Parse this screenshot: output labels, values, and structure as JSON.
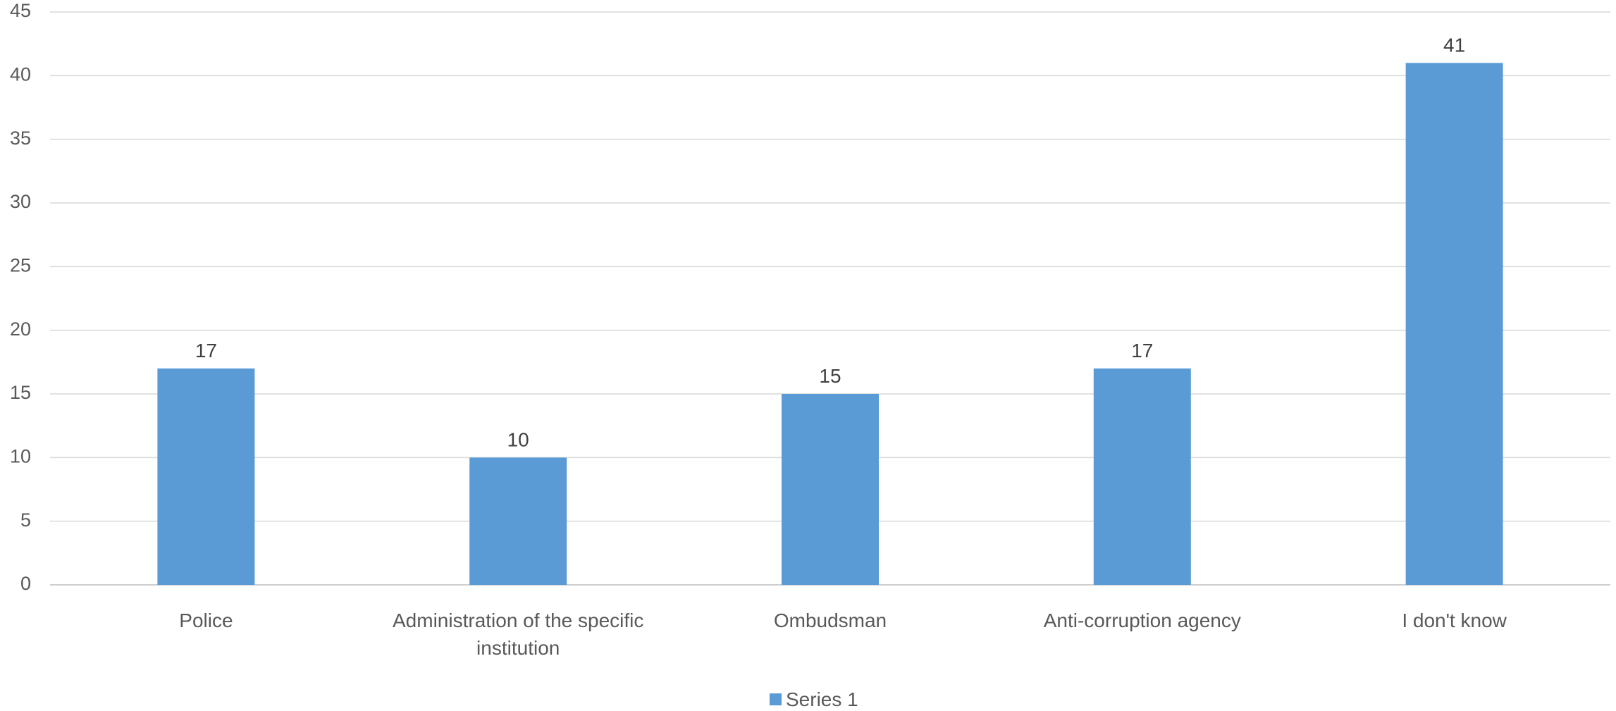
{
  "chart_data": {
    "type": "bar",
    "categories": [
      [
        "Police"
      ],
      [
        "Administration of the specific",
        "institution"
      ],
      [
        "Ombudsman"
      ],
      [
        "Anti-corruption agency"
      ],
      [
        "I don't know"
      ]
    ],
    "series": [
      {
        "name": "Series 1",
        "values": [
          17,
          10,
          15,
          17,
          41
        ],
        "color": "#5b9bd5"
      }
    ],
    "ylim": [
      0,
      45
    ],
    "yticks": [
      0,
      5,
      10,
      15,
      20,
      25,
      30,
      35,
      40,
      45
    ],
    "grid": true,
    "legend": "bottom-center",
    "data_labels": true
  }
}
